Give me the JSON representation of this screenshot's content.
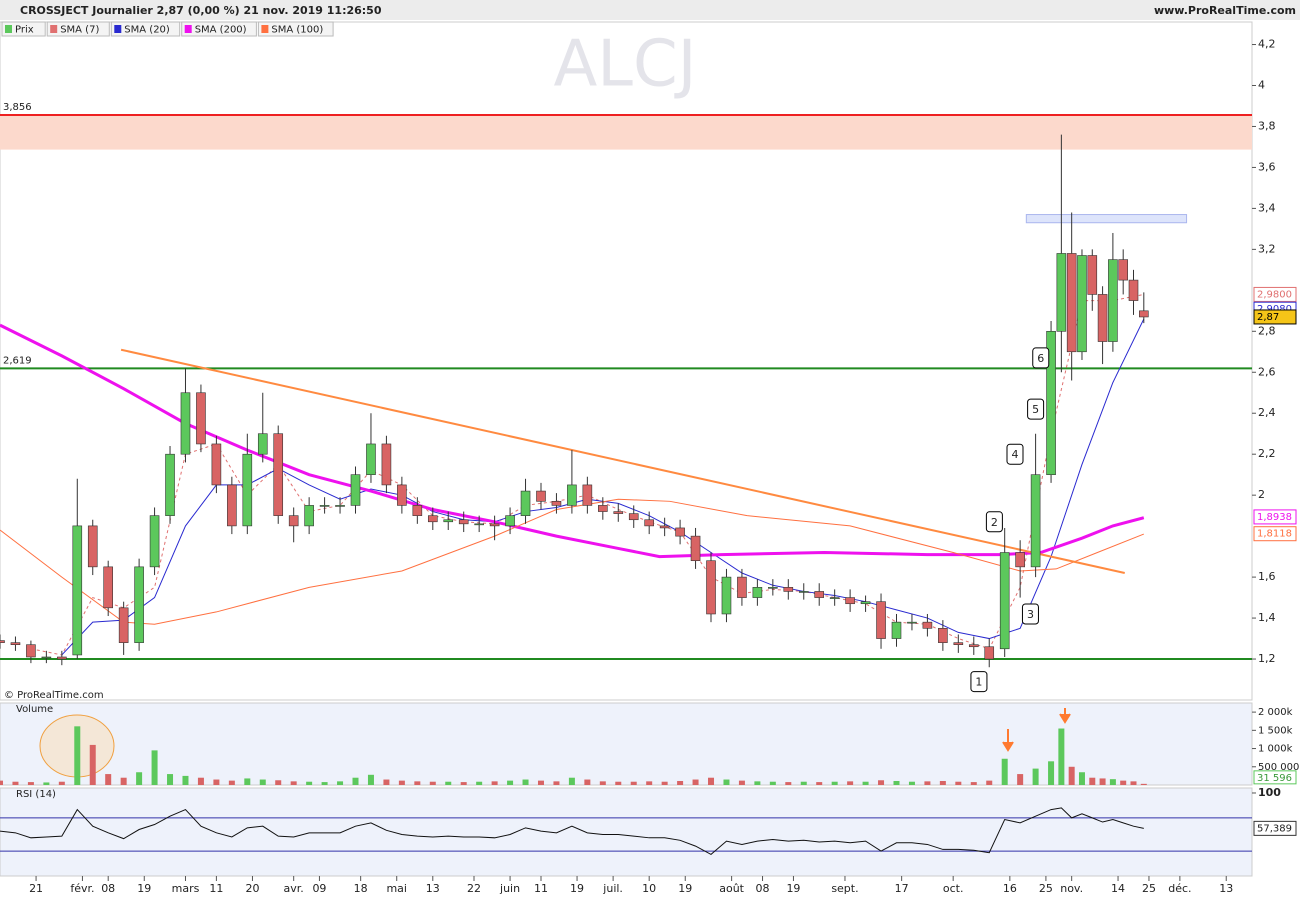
{
  "header": {
    "title": "CROSSJECT Journalier 2,87 (0,00 %) 21 nov. 2019 11:26:50",
    "site": "www.ProRealTime.com"
  },
  "chart_data": {
    "type": "candlestick",
    "watermark": "ALCJ",
    "copyright": "© ProRealTime.com",
    "candles": {
      "name": "Prix",
      "up_color": "#5cc85c",
      "down_color": "#d86464",
      "x": [
        0,
        3,
        6,
        9,
        12,
        15,
        18,
        21,
        24,
        27,
        30,
        33,
        36,
        39,
        42,
        45,
        48,
        51,
        54,
        57,
        60,
        63,
        66,
        69,
        72,
        75,
        78,
        81,
        84,
        87,
        90,
        93,
        96,
        99,
        102,
        105,
        108,
        111,
        114,
        117,
        120,
        123,
        126,
        129,
        132,
        135,
        138,
        141,
        144,
        147,
        150,
        153,
        156,
        159,
        162,
        165,
        168,
        171,
        174,
        177,
        180,
        183,
        186,
        189,
        192,
        195,
        198,
        201,
        204,
        206,
        208,
        210,
        212,
        214,
        216,
        218,
        220,
        222
      ],
      "open": [
        1.29,
        1.28,
        1.27,
        1.21,
        1.21,
        1.22,
        1.85,
        1.65,
        1.45,
        1.28,
        1.65,
        1.9,
        2.2,
        2.5,
        2.25,
        2.05,
        1.85,
        2.2,
        2.3,
        1.9,
        1.85,
        1.95,
        1.95,
        1.95,
        2.1,
        2.25,
        2.05,
        1.95,
        1.9,
        1.87,
        1.88,
        1.86,
        1.86,
        1.85,
        1.9,
        2.02,
        1.97,
        1.95,
        2.05,
        1.95,
        1.92,
        1.91,
        1.88,
        1.85,
        1.84,
        1.8,
        1.68,
        1.42,
        1.6,
        1.5,
        1.55,
        1.55,
        1.53,
        1.53,
        1.5,
        1.5,
        1.47,
        1.48,
        1.3,
        1.38,
        1.38,
        1.35,
        1.28,
        1.27,
        1.26,
        1.25,
        1.72,
        1.65,
        2.1,
        2.8,
        3.18,
        2.7,
        3.17,
        2.98,
        2.75,
        3.15,
        3.05,
        2.9
      ],
      "high": [
        1.32,
        1.31,
        1.29,
        1.24,
        1.24,
        2.08,
        1.88,
        1.68,
        1.48,
        1.69,
        1.94,
        2.24,
        2.62,
        2.54,
        2.29,
        2.09,
        2.3,
        2.5,
        2.34,
        1.94,
        1.99,
        1.99,
        1.99,
        2.14,
        2.4,
        2.29,
        2.09,
        1.99,
        1.94,
        1.92,
        1.92,
        1.9,
        1.9,
        1.94,
        2.08,
        2.06,
        2.01,
        2.22,
        2.09,
        1.99,
        1.96,
        1.95,
        1.92,
        1.89,
        1.88,
        1.84,
        1.72,
        1.64,
        1.64,
        1.59,
        1.59,
        1.59,
        1.57,
        1.57,
        1.54,
        1.54,
        1.51,
        1.52,
        1.42,
        1.42,
        1.42,
        1.39,
        1.32,
        1.31,
        1.3,
        1.84,
        1.78,
        2.3,
        2.85,
        3.76,
        3.38,
        3.2,
        3.2,
        3.02,
        3.28,
        3.2,
        3.1,
        2.99
      ],
      "low": [
        1.25,
        1.24,
        1.18,
        1.18,
        1.17,
        1.2,
        1.61,
        1.41,
        1.22,
        1.24,
        1.61,
        1.86,
        2.16,
        2.21,
        2.01,
        1.81,
        1.81,
        2.16,
        1.86,
        1.77,
        1.81,
        1.91,
        1.91,
        1.91,
        2.06,
        2.01,
        1.91,
        1.86,
        1.83,
        1.83,
        1.82,
        1.82,
        1.78,
        1.81,
        1.86,
        1.93,
        1.91,
        1.91,
        1.91,
        1.88,
        1.87,
        1.84,
        1.81,
        1.8,
        1.76,
        1.64,
        1.38,
        1.38,
        1.46,
        1.46,
        1.51,
        1.49,
        1.49,
        1.46,
        1.46,
        1.43,
        1.43,
        1.25,
        1.26,
        1.34,
        1.31,
        1.24,
        1.23,
        1.22,
        1.16,
        1.21,
        1.5,
        1.6,
        2.06,
        2.6,
        2.56,
        2.66,
        2.9,
        2.64,
        2.7,
        2.98,
        2.88,
        2.84
      ],
      "close": [
        1.28,
        1.27,
        1.21,
        1.21,
        1.2,
        1.85,
        1.65,
        1.45,
        1.28,
        1.65,
        1.9,
        2.2,
        2.5,
        2.25,
        2.05,
        1.85,
        2.2,
        2.3,
        1.9,
        1.85,
        1.95,
        1.95,
        1.95,
        2.1,
        2.25,
        2.05,
        1.95,
        1.9,
        1.87,
        1.88,
        1.86,
        1.86,
        1.85,
        1.9,
        2.02,
        1.97,
        1.95,
        2.05,
        1.95,
        1.92,
        1.91,
        1.88,
        1.85,
        1.84,
        1.8,
        1.68,
        1.42,
        1.6,
        1.5,
        1.55,
        1.55,
        1.53,
        1.53,
        1.5,
        1.5,
        1.47,
        1.48,
        1.3,
        1.38,
        1.38,
        1.35,
        1.28,
        1.27,
        1.26,
        1.2,
        1.72,
        1.65,
        2.1,
        2.8,
        3.18,
        2.7,
        3.17,
        2.98,
        2.75,
        3.15,
        3.05,
        2.95,
        2.87
      ]
    },
    "series": [
      {
        "name": "SMA (7)",
        "color": "#e07070",
        "dash": true,
        "width": 1,
        "x": [
          6,
          12,
          18,
          24,
          30,
          36,
          42,
          48,
          54,
          60,
          66,
          72,
          78,
          84,
          90,
          96,
          102,
          108,
          114,
          120,
          126,
          132,
          138,
          144,
          150,
          156,
          162,
          168,
          174,
          180,
          186,
          192,
          198,
          204,
          210,
          216,
          222
        ],
        "values": [
          1.25,
          1.22,
          1.5,
          1.45,
          1.55,
          2.2,
          2.25,
          2.0,
          2.15,
          1.92,
          1.95,
          2.12,
          2.05,
          1.9,
          1.87,
          1.86,
          1.95,
          1.97,
          2.0,
          1.93,
          1.87,
          1.82,
          1.6,
          1.52,
          1.54,
          1.53,
          1.5,
          1.47,
          1.38,
          1.37,
          1.3,
          1.25,
          1.55,
          2.3,
          2.95,
          2.95,
          2.98
        ]
      },
      {
        "name": "SMA (20)",
        "color": "#2a2ad0",
        "width": 1,
        "x": [
          12,
          18,
          24,
          30,
          36,
          42,
          48,
          54,
          60,
          66,
          72,
          78,
          84,
          90,
          96,
          102,
          108,
          114,
          120,
          126,
          132,
          138,
          144,
          150,
          156,
          162,
          168,
          174,
          180,
          186,
          192,
          198,
          204,
          210,
          216,
          222
        ],
        "values": [
          1.22,
          1.38,
          1.39,
          1.5,
          1.85,
          2.05,
          2.05,
          2.13,
          2.05,
          1.98,
          2.03,
          2.0,
          1.92,
          1.88,
          1.87,
          1.92,
          1.94,
          1.98,
          1.96,
          1.9,
          1.82,
          1.72,
          1.62,
          1.56,
          1.53,
          1.51,
          1.48,
          1.44,
          1.4,
          1.33,
          1.3,
          1.35,
          1.7,
          2.15,
          2.55,
          2.86
        ]
      },
      {
        "name": "SMA (200)",
        "color": "#ee11ee",
        "width": 3,
        "x": [
          0,
          12,
          24,
          36,
          48,
          60,
          72,
          84,
          96,
          108,
          120,
          128,
          140,
          160,
          180,
          194,
          202,
          210,
          216,
          222
        ],
        "values": [
          2.83,
          2.68,
          2.52,
          2.35,
          2.22,
          2.1,
          2.02,
          1.93,
          1.87,
          1.8,
          1.74,
          1.7,
          1.71,
          1.72,
          1.71,
          1.71,
          1.72,
          1.79,
          1.85,
          1.89
        ]
      },
      {
        "name": "SMA (100)",
        "color": "#ff7040",
        "width": 1,
        "x": [
          0,
          12,
          24,
          30,
          42,
          60,
          78,
          96,
          108,
          120,
          130,
          145,
          165,
          185,
          198,
          205,
          213,
          222
        ],
        "values": [
          1.83,
          1.6,
          1.38,
          1.37,
          1.43,
          1.55,
          1.63,
          1.8,
          1.93,
          1.98,
          1.97,
          1.9,
          1.85,
          1.72,
          1.63,
          1.64,
          1.72,
          1.81
        ]
      }
    ],
    "levels": [
      {
        "value": 3.856,
        "label": "3,856",
        "color": "#ee2020"
      },
      {
        "value": 2.619,
        "label": "2,619",
        "color": "#208a20"
      },
      {
        "value": 1.2,
        "color": "#208a20"
      }
    ],
    "zone": {
      "from": 3.687,
      "to": 3.856,
      "color": "#fcd9cc"
    },
    "box": {
      "x": [
        199.2,
        230.3
      ],
      "y": [
        3.33,
        3.37
      ]
    },
    "trendline": {
      "x": [
        23.5,
        218.3
      ],
      "y": [
        2.71,
        1.62
      ],
      "color": "#ff8a40"
    },
    "annotations": [
      {
        "label": "1",
        "x": 190,
        "y": 1.09
      },
      {
        "label": "2",
        "x": 193,
        "y": 1.87
      },
      {
        "label": "3",
        "x": 200,
        "y": 1.42
      },
      {
        "label": "4",
        "x": 197,
        "y": 2.2
      },
      {
        "label": "5",
        "x": 201,
        "y": 2.42
      },
      {
        "label": "6",
        "x": 202,
        "y": 2.67
      }
    ],
    "price_tags": [
      {
        "value": 2.98,
        "label": "2,9800",
        "color": "#e07070",
        "fill": "#fff"
      },
      {
        "value": 2.908,
        "label": "2,9080",
        "color": "#2a2ad0",
        "fill": "#fff"
      },
      {
        "value": 2.87,
        "label": "2,87",
        "color": "#000",
        "fill": "#f5c518"
      },
      {
        "value": 1.8938,
        "label": "1,8938",
        "color": "#ee11ee",
        "fill": "#fff"
      },
      {
        "value": 1.8118,
        "label": "1,8118",
        "color": "#ff7040",
        "fill": "#fff"
      }
    ],
    "xlim": [
      0,
      243
    ],
    "xticks": [
      {
        "value": 7,
        "label": "21"
      },
      {
        "value": 16,
        "label": "févr."
      },
      {
        "value": 21,
        "label": "08"
      },
      {
        "value": 28,
        "label": "19"
      },
      {
        "value": 36,
        "label": "mars"
      },
      {
        "value": 42,
        "label": "11"
      },
      {
        "value": 49,
        "label": "20"
      },
      {
        "value": 57,
        "label": "avr."
      },
      {
        "value": 62,
        "label": "09"
      },
      {
        "value": 70,
        "label": "18"
      },
      {
        "value": 77,
        "label": "mai"
      },
      {
        "value": 84,
        "label": "13"
      },
      {
        "value": 92,
        "label": "22"
      },
      {
        "value": 99,
        "label": "juin"
      },
      {
        "value": 105,
        "label": "11"
      },
      {
        "value": 112,
        "label": "19"
      },
      {
        "value": 119,
        "label": "juil."
      },
      {
        "value": 126,
        "label": "10"
      },
      {
        "value": 133,
        "label": "19"
      },
      {
        "value": 142,
        "label": "août"
      },
      {
        "value": 148,
        "label": "08"
      },
      {
        "value": 154,
        "label": "19"
      },
      {
        "value": 164,
        "label": "sept."
      },
      {
        "value": 175,
        "label": "17"
      },
      {
        "value": 185,
        "label": "oct."
      },
      {
        "value": 196,
        "label": "16"
      },
      {
        "value": 203,
        "label": "25"
      },
      {
        "value": 208,
        "label": "nov."
      },
      {
        "value": 217,
        "label": "14"
      },
      {
        "value": 223,
        "label": "25"
      },
      {
        "value": 229,
        "label": "déc."
      },
      {
        "value": 238,
        "label": "13"
      }
    ],
    "ylim": [
      1.0,
      4.31
    ],
    "yticks": [
      {
        "value": 4.2,
        "label": "4,2"
      },
      4,
      {
        "value": 3.8,
        "label": "3,8"
      },
      {
        "value": 3.6,
        "label": "3,6"
      },
      {
        "value": 3.4,
        "label": "3,4"
      },
      {
        "value": 3.2,
        "label": "3,2"
      },
      {
        "value": 2.8,
        "label": "2,8"
      },
      {
        "value": 2.6,
        "label": "2,6"
      },
      {
        "value": 2.4,
        "label": "2,4"
      },
      {
        "value": 2.2,
        "label": "2,2"
      },
      2,
      {
        "value": 1.6,
        "label": "1,6"
      },
      {
        "value": 1.4,
        "label": "1,4"
      },
      {
        "value": 1.2,
        "label": "1,2"
      }
    ],
    "volume": {
      "name": "Volume",
      "ylim": [
        0,
        2250000
      ],
      "yticks": [
        {
          "value": 2000000,
          "label": "2 000k"
        },
        {
          "value": 1500000,
          "label": "1 500k"
        },
        {
          "value": 1000000,
          "label": "1 000k"
        },
        {
          "value": 500000,
          "label": "500 000"
        }
      ],
      "values": [
        120000,
        90000,
        80000,
        70000,
        90000,
        1610000,
        1100000,
        300000,
        200000,
        350000,
        950000,
        300000,
        250000,
        200000,
        150000,
        120000,
        180000,
        150000,
        130000,
        100000,
        90000,
        80000,
        100000,
        200000,
        280000,
        150000,
        120000,
        100000,
        90000,
        90000,
        80000,
        90000,
        100000,
        120000,
        150000,
        120000,
        100000,
        200000,
        150000,
        100000,
        90000,
        90000,
        100000,
        90000,
        110000,
        150000,
        200000,
        150000,
        120000,
        100000,
        90000,
        80000,
        90000,
        80000,
        90000,
        100000,
        90000,
        130000,
        110000,
        90000,
        100000,
        110000,
        90000,
        80000,
        120000,
        720000,
        300000,
        450000,
        650000,
        1550000,
        500000,
        350000,
        200000,
        180000,
        160000,
        120000,
        100000,
        31596
      ],
      "last": {
        "value": 31596,
        "label": "31 596"
      }
    },
    "rsi": {
      "name": "RSI (14)",
      "ylim": [
        0,
        106
      ],
      "yticks": [
        100
      ],
      "levels": [
        70,
        30
      ],
      "color": "#111",
      "values": [
        54,
        52,
        46,
        47,
        48,
        80,
        60,
        52,
        45,
        56,
        62,
        72,
        80,
        60,
        52,
        47,
        58,
        60,
        48,
        47,
        52,
        52,
        52,
        60,
        64,
        55,
        50,
        48,
        47,
        48,
        47,
        47,
        46,
        50,
        58,
        54,
        52,
        60,
        52,
        50,
        50,
        48,
        46,
        46,
        43,
        36,
        26,
        42,
        38,
        42,
        44,
        42,
        43,
        41,
        42,
        40,
        42,
        30,
        40,
        40,
        38,
        32,
        32,
        31,
        28,
        68,
        64,
        72,
        80,
        82,
        70,
        75,
        70,
        65,
        68,
        64,
        60,
        57.389
      ],
      "last": {
        "value": 57.389,
        "label": "57,389"
      }
    }
  }
}
